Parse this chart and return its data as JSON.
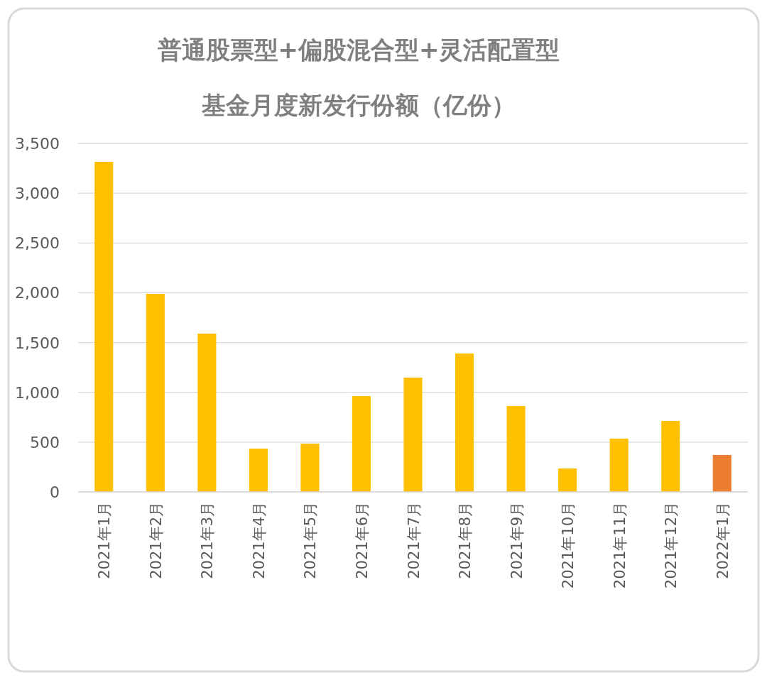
{
  "chart_data": {
    "type": "bar",
    "title": "普通股票型+偏股混合型+灵活配置型",
    "subtitle": "基金月度新发行份额（亿份）",
    "categories": [
      "2021年1月",
      "2021年2月",
      "2021年3月",
      "2021年4月",
      "2021年5月",
      "2021年6月",
      "2021年7月",
      "2021年8月",
      "2021年9月",
      "2021年10月",
      "2021年11月",
      "2021年12月",
      "2022年1月"
    ],
    "values": [
      3315,
      1989,
      1590,
      435,
      485,
      962,
      1148,
      1390,
      863,
      235,
      535,
      713,
      371
    ],
    "colors": [
      "#ffc000",
      "#ffc000",
      "#ffc000",
      "#ffc000",
      "#ffc000",
      "#ffc000",
      "#ffc000",
      "#ffc000",
      "#ffc000",
      "#ffc000",
      "#ffc000",
      "#ffc000",
      "#ed7d31"
    ],
    "ylim": [
      0,
      3500
    ],
    "yticks": [
      0,
      {
        "value": 500,
        "label": "500"
      },
      {
        "value": 1000,
        "label": "1,000"
      },
      {
        "value": 1500,
        "label": "1,500"
      },
      {
        "value": 2000,
        "label": "2,000"
      },
      {
        "value": 2500,
        "label": "2,500"
      },
      {
        "value": 3000,
        "label": "3,000"
      },
      {
        "value": 3500,
        "label": "3,500"
      }
    ],
    "grid": "y"
  }
}
